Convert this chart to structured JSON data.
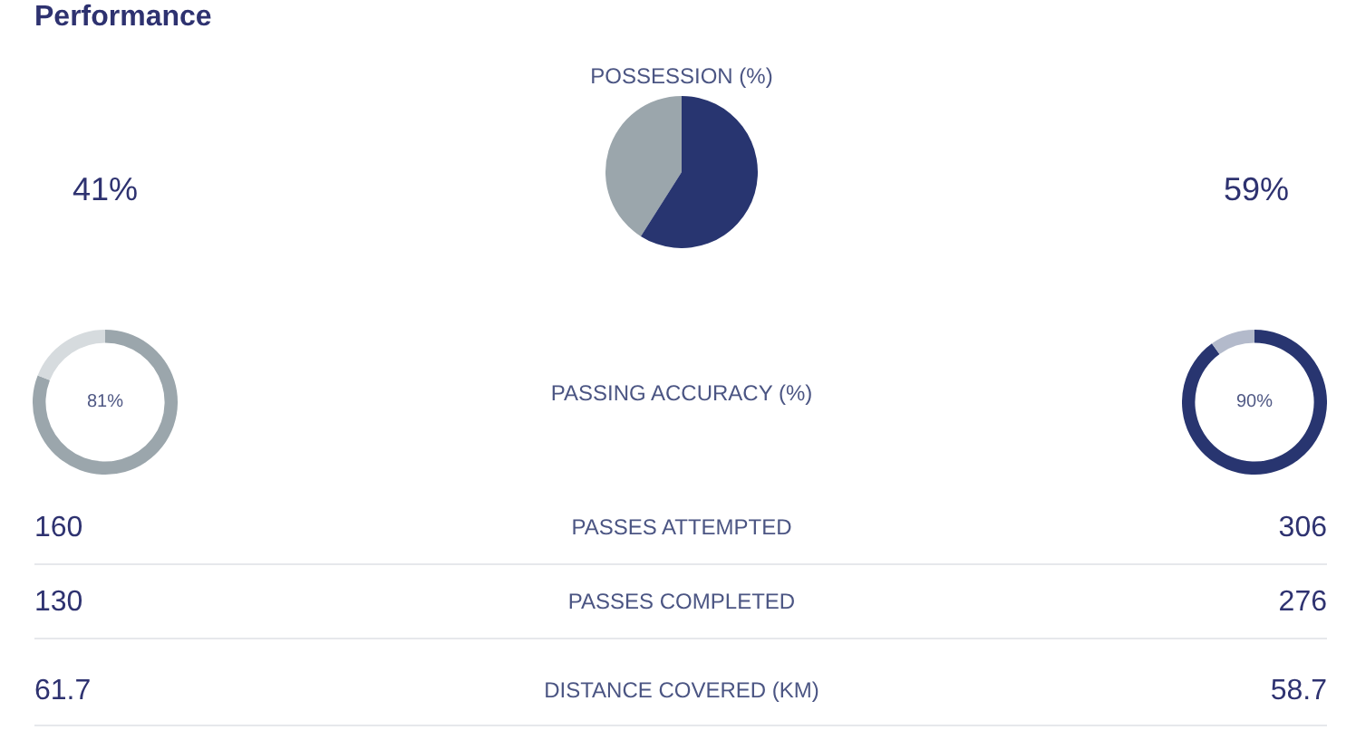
{
  "chart_data": [
    {
      "type": "pie",
      "title": "Performance",
      "subtitle": "POSSESSION (%)",
      "categories": [
        null,
        null
      ],
      "values": [
        41,
        59
      ],
      "colors": [
        "#9ba6ac",
        "#283570"
      ],
      "annotations": [
        "41%",
        "59%"
      ]
    },
    {
      "type": "donut",
      "title": "PASSING ACCURACY (%)",
      "categories": [
        null,
        null
      ],
      "series": [
        {
          "values": [
            81,
            19
          ],
          "colors": [
            "#9ba6ac",
            "#d6dbde"
          ],
          "value_labels": [
            "81%",
            null
          ]
        },
        {
          "values": [
            90,
            10
          ],
          "colors": [
            "#283570",
            "#b3bacb"
          ],
          "value_labels": [
            "90%",
            null
          ]
        }
      ]
    },
    {
      "type": "other",
      "categories": [
        "PASSES ATTEMPTED",
        "PASSES COMPLETED",
        "DISTANCE COVERED (KM)"
      ],
      "series": [
        {
          "values": [
            160,
            130,
            61.7
          ]
        },
        {
          "values": [
            306,
            276,
            58.7
          ]
        }
      ],
      "data_labels": true
    }
  ]
}
